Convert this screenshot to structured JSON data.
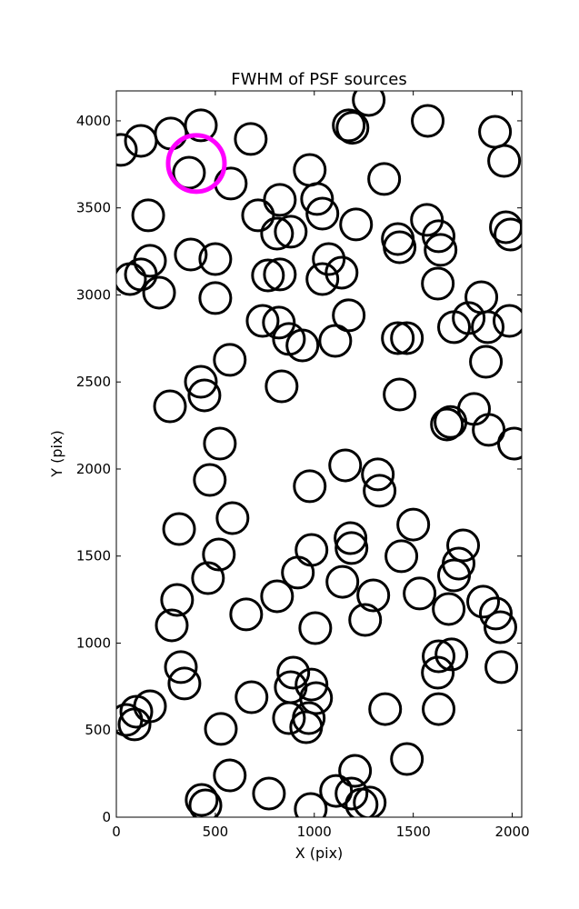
{
  "chart_data": {
    "type": "scatter",
    "title": "FWHM of PSF sources",
    "xlabel": "X (pix)",
    "ylabel": "Y (pix)",
    "xlim": [
      0,
      2048
    ],
    "ylim": [
      0,
      4172
    ],
    "xticks": [
      0,
      500,
      1000,
      1500,
      2000
    ],
    "yticks": [
      0,
      500,
      1000,
      1500,
      2000,
      2500,
      3000,
      3500,
      4000
    ],
    "series": [
      {
        "color": "#000000",
        "x": [
          23,
          124,
          275,
          427,
          367,
          578,
          679,
          1275,
          1174,
          1193,
          1573,
          1913,
          1959,
          161,
          977,
          1353,
          826,
          1014,
          1041,
          716,
          1211,
          812,
          881,
          1569,
          1628,
          1968,
          1991,
          1422,
          1431,
          1638,
          170,
          376,
          500,
          1073,
          69,
          124,
          216,
          500,
          766,
          826,
          1041,
          1138,
          1624,
          1844,
          1174,
          739,
          821,
          872,
          940,
          1106,
          1422,
          1468,
          1706,
          1780,
          1876,
          1986,
          573,
          1867,
          427,
          445,
          835,
          271,
          1431,
          1807,
          1670,
          1688,
          1881,
          2009,
          523,
          472,
          977,
          1156,
          1321,
          1330,
          587,
          317,
          1183,
          1188,
          1500,
          1752,
          986,
          518,
          1440,
          1729,
          1706,
          463,
          1142,
          917,
          812,
          1298,
          1532,
          307,
          1679,
          1853,
          1917,
          1940,
          656,
          1257,
          280,
          1005,
          326,
          1628,
          1693,
          1624,
          1945,
          894,
          344,
          881,
          986,
          1009,
          683,
          170,
          101,
          50,
          92,
          872,
          972,
          959,
          1358,
          1628,
          528,
          1468,
          573,
          1206,
          1110,
          1188,
          771,
          431,
          450,
          982,
          1239,
          1280
        ],
        "y": [
          3833,
          3885,
          3927,
          3974,
          3702,
          3640,
          3896,
          4120,
          3974,
          3960,
          4000,
          3937,
          3770,
          3457,
          3718,
          3666,
          3546,
          3551,
          3467,
          3457,
          3405,
          3352,
          3363,
          3431,
          3337,
          3389,
          3347,
          3321,
          3274,
          3259,
          3196,
          3232,
          3206,
          3206,
          3091,
          3118,
          3013,
          2982,
          3112,
          3118,
          3091,
          3128,
          3065,
          2987,
          2883,
          2851,
          2841,
          2747,
          2710,
          2736,
          2752,
          2752,
          2815,
          2867,
          2815,
          2851,
          2627,
          2616,
          2501,
          2423,
          2475,
          2360,
          2428,
          2345,
          2256,
          2270,
          2225,
          2146,
          2146,
          1937,
          1901,
          2021,
          1969,
          1875,
          1718,
          1655,
          1603,
          1546,
          1681,
          1561,
          1535,
          1509,
          1499,
          1457,
          1389,
          1373,
          1352,
          1405,
          1269,
          1274,
          1285,
          1248,
          1196,
          1238,
          1170,
          1091,
          1165,
          1133,
          1102,
          1086,
          862,
          924,
          935,
          830,
          862,
          830,
          768,
          747,
          762,
          684,
          689,
          637,
          606,
          559,
          533,
          569,
          569,
          517,
          621,
          621,
          507,
          334,
          240,
          266,
          151,
          136,
          136,
          99,
          68,
          47,
          73,
          84
        ]
      },
      {
        "color": "#ff00ff",
        "x": [
          404
        ],
        "y": [
          3755
        ]
      }
    ]
  }
}
